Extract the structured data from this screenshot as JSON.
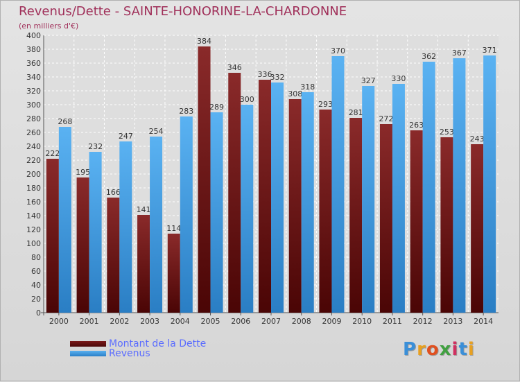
{
  "title": "Revenus/Dette - SAINTE-HONORINE-LA-CHARDONNE",
  "subtitle": "(en milliers d'€)",
  "legend": [
    {
      "label": "Montant de la Dette",
      "color": "#7a1a1a"
    },
    {
      "label": "Revenus",
      "color": "#3a9ae0"
    }
  ],
  "logo": {
    "text": "Proxiti",
    "colors": [
      "#3a8fd8",
      "#e8a020",
      "#e05020",
      "#40a040",
      "#d03060",
      "#3a8fd8",
      "#e8a020"
    ]
  },
  "chart_data": {
    "type": "bar",
    "title": "Revenus/Dette - SAINTE-HONORINE-LA-CHARDONNE",
    "ylabel": "(en milliers d'€)",
    "xlabel": "",
    "ylim": [
      0,
      400
    ],
    "ytick_step": 20,
    "grid": true,
    "categories": [
      "2000",
      "2001",
      "2002",
      "2003",
      "2004",
      "2005",
      "2006",
      "2007",
      "2008",
      "2009",
      "2010",
      "2011",
      "2012",
      "2013",
      "2014"
    ],
    "series": [
      {
        "name": "Montant de la Dette",
        "color": "#7a1a1a",
        "values": [
          222,
          195,
          166,
          141,
          114,
          384,
          346,
          336,
          308,
          293,
          281,
          272,
          263,
          253,
          243
        ]
      },
      {
        "name": "Revenus",
        "color": "#3a9ae0",
        "values": [
          268,
          232,
          247,
          254,
          283,
          289,
          300,
          332,
          318,
          370,
          327,
          330,
          362,
          367,
          371
        ]
      }
    ]
  }
}
